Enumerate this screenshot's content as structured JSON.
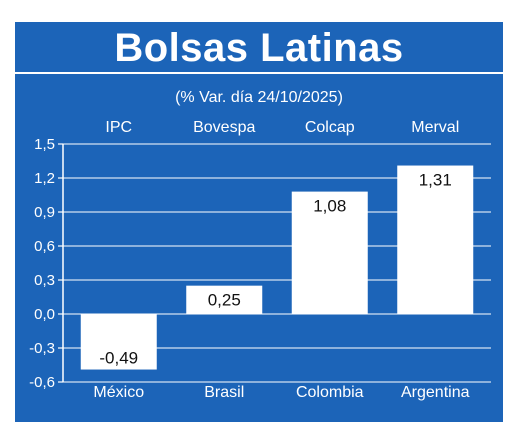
{
  "title": "Bolsas Latinas",
  "colors": {
    "background": "#1c64b8",
    "bar": "#ffffff",
    "text": "#ffffff",
    "value_text": "#111111"
  },
  "chart_data": {
    "type": "bar",
    "subtitle": "(% Var. día 24/10/2025)",
    "categories": [
      "México",
      "Brasil",
      "Colombia",
      "Argentina"
    ],
    "index_names": [
      "IPC",
      "Bovespa",
      "Colcap",
      "Merval"
    ],
    "values": [
      -0.49,
      0.25,
      1.08,
      1.31
    ],
    "value_labels": [
      "-0,49",
      "0,25",
      "1,08",
      "1,31"
    ],
    "ylim": [
      -0.6,
      1.5
    ],
    "yticks": [
      1.5,
      1.2,
      0.9,
      0.6,
      0.3,
      0.0,
      -0.3,
      -0.6
    ],
    "ytick_labels": [
      "1,5",
      "1,2",
      "0,9",
      "0,6",
      "0,3",
      "0,0",
      "-0,3",
      "-0,6"
    ],
    "grid": true,
    "xlabel": "",
    "ylabel": ""
  }
}
